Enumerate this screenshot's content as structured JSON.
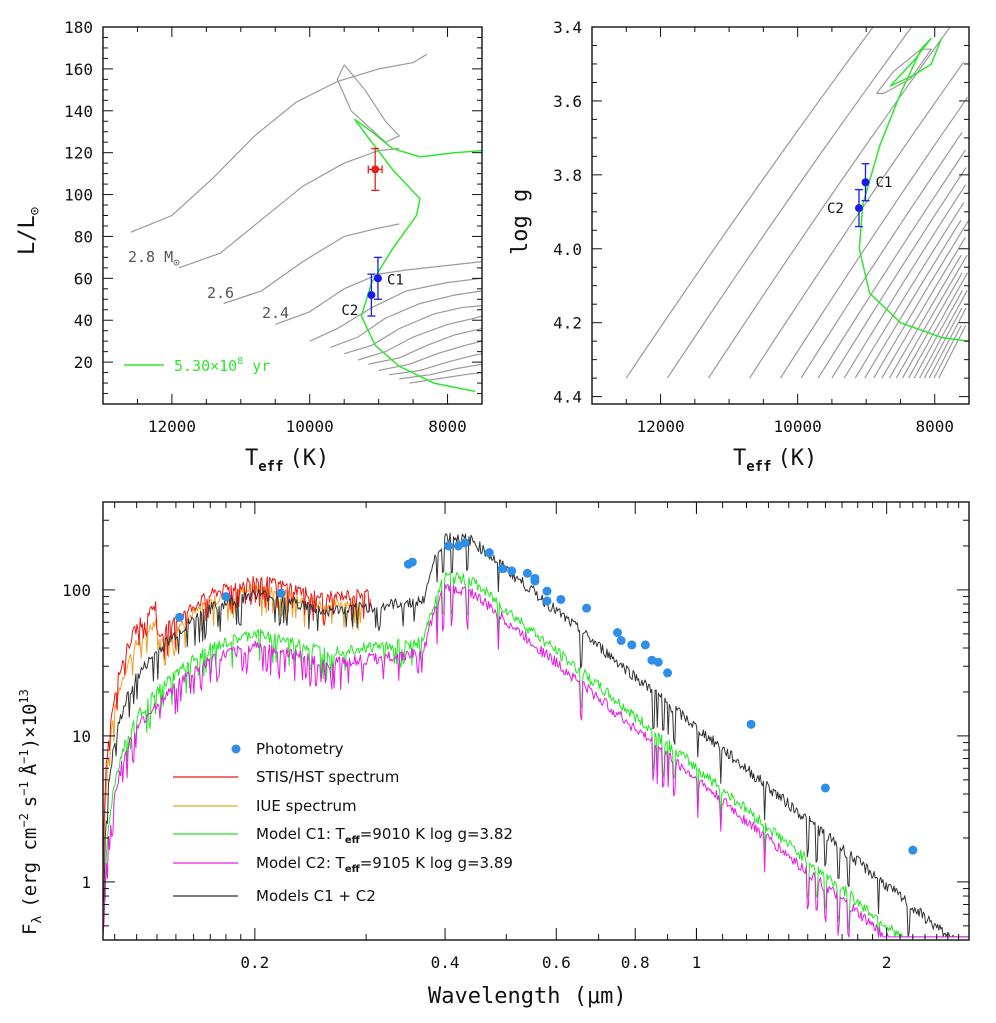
{
  "chart_data": [
    {
      "type": "scatter",
      "panel": "hr-diagram",
      "xlabel": "T",
      "xlabel_sub": "eff",
      "xlabel_unit": "(K)",
      "ylabel": "L/L",
      "ylabel_sub": "⊙",
      "xlim": [
        13000,
        7500
      ],
      "ylim": [
        0,
        180
      ],
      "x_ticks": [
        "12000",
        "10000",
        "8000"
      ],
      "y_ticks": [
        "20",
        "40",
        "60",
        "80",
        "100",
        "120",
        "140",
        "160",
        "180"
      ],
      "mass_labels": [
        "2.8 M",
        "2.6",
        "2.4"
      ],
      "mass_label_sub": "⊙",
      "isochrone_label": "5.30×10",
      "isochrone_exp": "8",
      "isochrone_unit": " yr",
      "points": [
        {
          "name": "combined",
          "x": 9050,
          "y": 112,
          "yerr": 10,
          "xerr": 100,
          "color": "#e8201a"
        },
        {
          "name": "C1",
          "label": "C1",
          "x": 9010,
          "y": 60,
          "yerr": 10,
          "color": "#1a1aee"
        },
        {
          "name": "C2",
          "label": "C2",
          "x": 9105,
          "y": 52,
          "yerr": 10,
          "color": "#1a1aee"
        }
      ],
      "colors": {
        "tracks": "#9a9a9a",
        "isochrone": "#2ee62e"
      }
    },
    {
      "type": "scatter",
      "panel": "kiel-diagram",
      "xlabel": "T",
      "xlabel_sub": "eff",
      "xlabel_unit": "(K)",
      "ylabel": "log g",
      "xlim": [
        13000,
        7500
      ],
      "ylim": [
        4.42,
        3.4
      ],
      "x_ticks": [
        "12000",
        "10000",
        "8000"
      ],
      "y_ticks": [
        "3.4",
        "3.6",
        "3.8",
        "4.0",
        "4.2",
        "4.4"
      ],
      "points": [
        {
          "name": "C1",
          "label": "C1",
          "x": 9010,
          "y": 3.82,
          "yerr": 0.05,
          "color": "#1a1aee"
        },
        {
          "name": "C2",
          "label": "C2",
          "x": 9105,
          "y": 3.89,
          "yerr": 0.05,
          "color": "#1a1aee"
        }
      ]
    },
    {
      "type": "line",
      "panel": "sed",
      "xlabel": "Wavelength (μm)",
      "ylabel": "F",
      "ylabel_sub": "λ",
      "ylabel_unit": "(erg cm",
      "ylabel_unit2": "s",
      "ylabel_unit3": "Å",
      "ylabel_unit4": ")×10",
      "ylabel_sup1": "−2",
      "ylabel_sup2": "−1",
      "ylabel_sup3": "−1",
      "ylabel_sup4": "13",
      "x_scale": "log",
      "y_scale": "log",
      "xlim": [
        0.115,
        2.7
      ],
      "ylim": [
        0.4,
        400
      ],
      "x_ticks": [
        "0.2",
        "0.4",
        "0.6",
        "0.8",
        "1",
        "2"
      ],
      "y_ticks": [
        "1",
        "10",
        "100"
      ],
      "photometry": {
        "name": "Photometry",
        "color": "#2e8ee8",
        "points": [
          [
            0.152,
            65
          ],
          [
            0.18,
            90
          ],
          [
            0.22,
            95
          ],
          [
            0.35,
            150
          ],
          [
            0.355,
            155
          ],
          [
            0.405,
            200
          ],
          [
            0.42,
            200
          ],
          [
            0.43,
            210
          ],
          [
            0.47,
            180
          ],
          [
            0.493,
            140
          ],
          [
            0.51,
            135
          ],
          [
            0.54,
            130
          ],
          [
            0.555,
            120
          ],
          [
            0.555,
            115
          ],
          [
            0.58,
            98
          ],
          [
            0.58,
            84
          ],
          [
            0.61,
            86
          ],
          [
            0.67,
            75
          ],
          [
            0.75,
            51
          ],
          [
            0.76,
            45
          ],
          [
            0.79,
            42
          ],
          [
            0.83,
            42
          ],
          [
            0.85,
            33
          ],
          [
            0.87,
            32
          ],
          [
            0.9,
            27
          ],
          [
            1.22,
            12
          ],
          [
            1.6,
            4.4
          ],
          [
            2.2,
            1.65
          ]
        ]
      },
      "series": [
        {
          "name": "STIS/HST spectrum",
          "color": "#e81a1a"
        },
        {
          "name": "IUE spectrum",
          "color": "#f0a020"
        },
        {
          "name": "Model C1: T",
          "name_sub": "eff",
          "name_rest": "=9010 K  log g=3.82",
          "color": "#22e822"
        },
        {
          "name": "Model C2: T",
          "name_sub": "eff",
          "name_rest": "=9105 K  log g=3.89",
          "color": "#e81ae8"
        },
        {
          "name": "Models C1 + C2",
          "color": "#333333"
        }
      ]
    }
  ]
}
